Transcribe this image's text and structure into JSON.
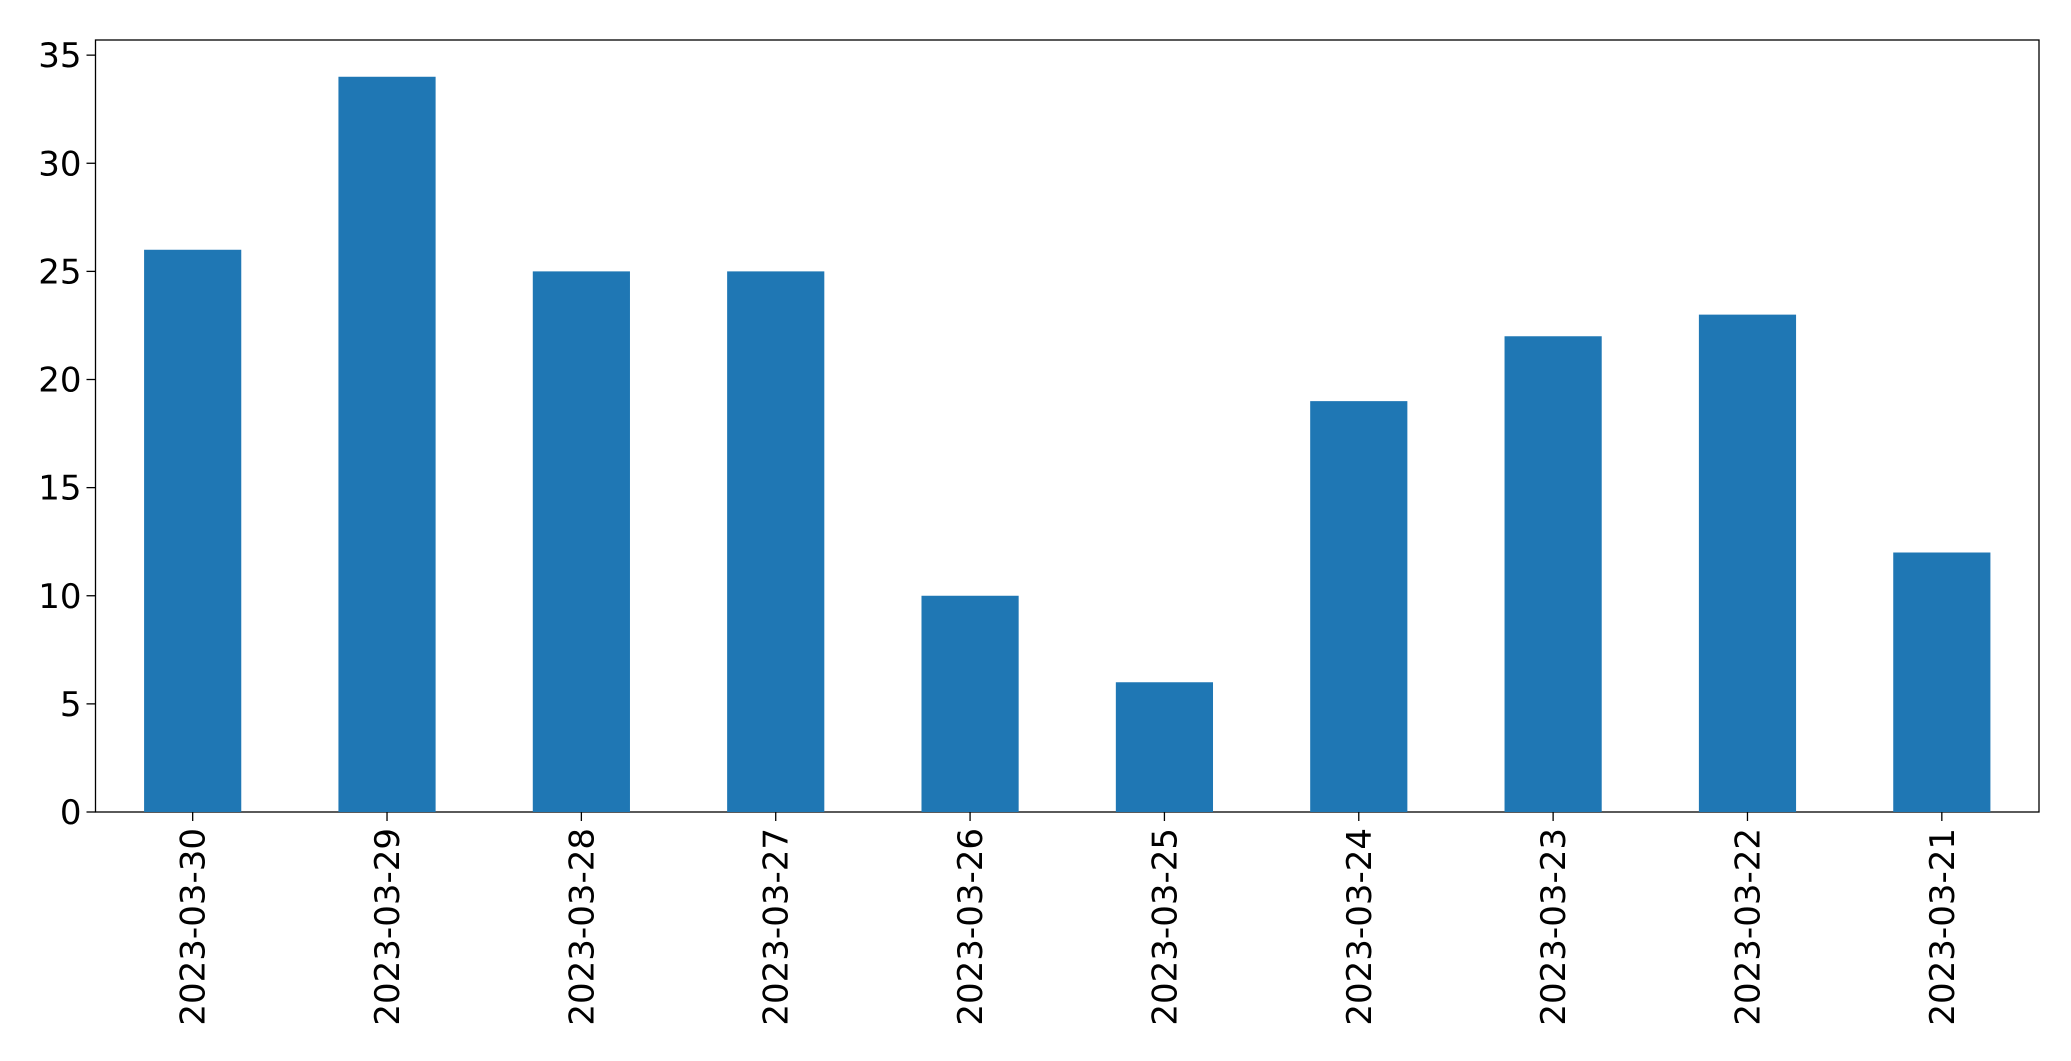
{
  "chart_data": {
    "type": "bar",
    "categories": [
      "2023-03-30",
      "2023-03-29",
      "2023-03-28",
      "2023-03-27",
      "2023-03-26",
      "2023-03-25",
      "2023-03-24",
      "2023-03-23",
      "2023-03-22",
      "2023-03-21"
    ],
    "values": [
      26,
      34,
      25,
      25,
      10,
      6,
      19,
      22,
      23,
      12
    ],
    "color": "#1f77b4",
    "ylim": [
      0,
      35.7
    ],
    "yticks": [
      0,
      5,
      10,
      15,
      20,
      25,
      30,
      35
    ],
    "grid": false
  }
}
